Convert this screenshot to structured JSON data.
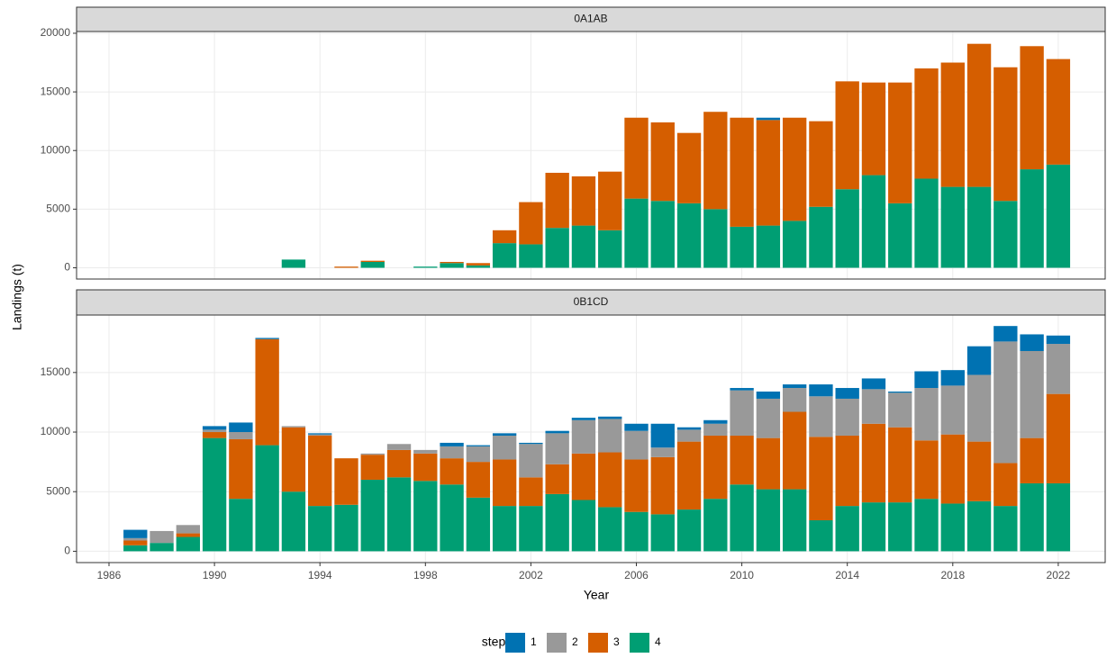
{
  "chart_data": {
    "type": "bar",
    "stacked": true,
    "x_label": "Year",
    "y_label": "Landings (t)",
    "legend_title": "step",
    "x": [
      1987,
      1988,
      1989,
      1990,
      1991,
      1992,
      1993,
      1994,
      1995,
      1996,
      1997,
      1998,
      1999,
      2000,
      2001,
      2002,
      2003,
      2004,
      2005,
      2006,
      2007,
      2008,
      2009,
      2010,
      2011,
      2012,
      2013,
      2014,
      2015,
      2016,
      2017,
      2018,
      2019,
      2020,
      2021,
      2022
    ],
    "xlim": [
      1984.77,
      2023.78
    ],
    "xticks": [
      1986,
      1990,
      1994,
      1998,
      2002,
      2006,
      2010,
      2014,
      2018,
      2022
    ],
    "grid": true,
    "series": [
      {
        "name": "1",
        "color": "#0072B2"
      },
      {
        "name": "2",
        "color": "#999999"
      },
      {
        "name": "3",
        "color": "#D55E00"
      },
      {
        "name": "4",
        "color": "#009E73"
      }
    ],
    "panels": [
      {
        "title": "0A1AB",
        "ylim": [
          -960,
          20150
        ],
        "yticks": [
          0,
          5000,
          10000,
          15000,
          20000
        ],
        "values": [
          [
            0,
            0,
            0,
            0,
            0,
            0,
            0,
            0,
            0,
            0,
            0,
            0,
            0,
            0,
            0,
            0,
            0,
            0,
            0,
            0,
            0,
            0,
            0,
            0,
            200,
            0,
            0,
            0,
            0,
            0,
            0,
            0,
            0,
            0,
            0,
            0
          ],
          [
            0,
            0,
            0,
            0,
            0,
            0,
            0,
            0,
            0,
            0,
            0,
            0,
            0,
            0,
            0,
            0,
            0,
            0,
            0,
            0,
            0,
            0,
            0,
            0,
            0,
            0,
            0,
            0,
            0,
            0,
            0,
            0,
            0,
            0,
            0,
            0
          ],
          [
            0,
            0,
            0,
            0,
            0,
            0,
            0,
            0,
            100,
            100,
            0,
            0,
            100,
            200,
            1100,
            3600,
            4700,
            4200,
            5000,
            6900,
            6700,
            6000,
            8300,
            9300,
            9000,
            8800,
            7300,
            9200,
            7900,
            10300,
            9400,
            10600,
            12200,
            11400,
            10500,
            9000
          ],
          [
            0,
            0,
            0,
            0,
            0,
            0,
            700,
            0,
            0,
            500,
            0,
            100,
            400,
            200,
            2100,
            2000,
            3400,
            3600,
            3200,
            5900,
            5700,
            5500,
            5000,
            3500,
            3600,
            4000,
            5200,
            6700,
            7900,
            5500,
            7600,
            6900,
            6900,
            5700,
            8400,
            8800
          ]
        ]
      },
      {
        "title": "0B1CD",
        "ylim": [
          -950,
          19820
        ],
        "yticks": [
          0,
          5000,
          10000,
          15000
        ],
        "values": [
          [
            700,
            0,
            0,
            300,
            800,
            100,
            0,
            100,
            0,
            0,
            0,
            0,
            300,
            100,
            200,
            100,
            200,
            200,
            200,
            600,
            2000,
            200,
            300,
            200,
            600,
            300,
            1000,
            900,
            900,
            100,
            1400,
            1300,
            2400,
            1300,
            1400,
            700
          ],
          [
            200,
            1000,
            700,
            200,
            600,
            0,
            100,
            100,
            0,
            100,
            500,
            300,
            1000,
            1300,
            2000,
            2800,
            2600,
            2800,
            2800,
            2400,
            800,
            1000,
            1000,
            3800,
            3300,
            2000,
            3400,
            3100,
            2900,
            2900,
            4400,
            4100,
            5600,
            10200,
            7300,
            4200
          ],
          [
            400,
            0,
            300,
            500,
            5000,
            8900,
            5400,
            5900,
            3900,
            2100,
            2300,
            2300,
            2200,
            3000,
            3900,
            2400,
            2500,
            3900,
            4600,
            4400,
            4800,
            5700,
            5300,
            4100,
            4300,
            6500,
            7000,
            5900,
            6600,
            6300,
            4900,
            5800,
            5000,
            3600,
            3800,
            7500
          ],
          [
            500,
            700,
            1200,
            9500,
            4400,
            8900,
            5000,
            3800,
            3900,
            6000,
            6200,
            5900,
            5600,
            4500,
            3800,
            3800,
            4800,
            4300,
            3700,
            3300,
            3100,
            3500,
            4400,
            5600,
            5200,
            5200,
            2600,
            3800,
            4100,
            4100,
            4400,
            4000,
            4200,
            3800,
            5700,
            5700
          ]
        ]
      }
    ]
  }
}
